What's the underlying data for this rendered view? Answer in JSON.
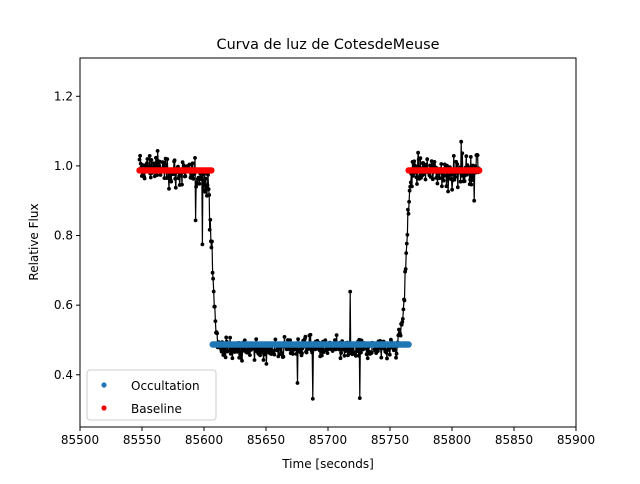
{
  "chart_data": {
    "type": "scatter",
    "title": "Curva de luz de CotesdeMeuse",
    "xlabel": "Time [seconds]",
    "ylabel": "Relative Flux",
    "xlim": [
      85500,
      85900
    ],
    "ylim": [
      0.25,
      1.31
    ],
    "xticks": [
      85500,
      85550,
      85600,
      85650,
      85700,
      85750,
      85800,
      85850,
      85900
    ],
    "yticks": [
      0.4,
      0.6,
      0.8,
      1.0,
      1.2
    ],
    "grid": false,
    "legend_position": "lower-left",
    "series": [
      {
        "name": "Occultation",
        "color": "#1f77b4",
        "marker": "dot",
        "x_range": [
          85607,
          85765
        ],
        "y_level": 0.487
      },
      {
        "name": "Baseline",
        "color": "#ff0000",
        "marker": "dot",
        "x_ranges": [
          [
            85548,
            85606
          ],
          [
            85765,
            85822
          ]
        ],
        "y_level": 0.987
      },
      {
        "color": "#000000",
        "style": "line with dot markers",
        "description_points": [
          [
            85548,
            0.99
          ],
          [
            85560,
            1.0
          ],
          [
            85580,
            0.98
          ],
          [
            85600,
            0.97
          ],
          [
            85604,
            0.92
          ],
          [
            85606,
            0.78
          ],
          [
            85608,
            0.62
          ],
          [
            85610,
            0.52
          ],
          [
            85612,
            0.48
          ],
          [
            85640,
            0.47
          ],
          [
            85680,
            0.48
          ],
          [
            85720,
            0.47
          ],
          [
            85755,
            0.48
          ],
          [
            85760,
            0.55
          ],
          [
            85762,
            0.65
          ],
          [
            85764,
            0.82
          ],
          [
            85766,
            0.95
          ],
          [
            85770,
            0.99
          ],
          [
            85800,
            0.98
          ],
          [
            85822,
            0.99
          ]
        ]
      }
    ]
  }
}
